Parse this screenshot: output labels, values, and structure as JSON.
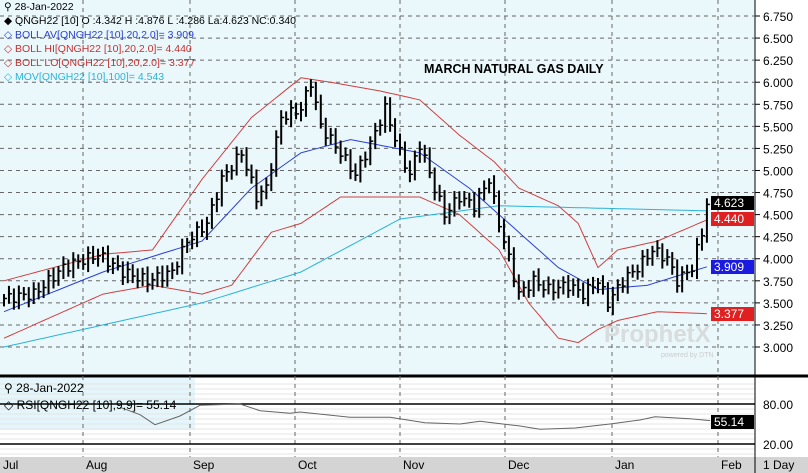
{
  "header": {
    "date": "28-Jan-2022",
    "quote": "QNGH22 [10] O :4.342 H :4.876 L :4.286 La:4.623 NC:0.340",
    "boll_av": "BOLL AV[QNGH22 [10],20,2.0]= 3.909",
    "boll_hi": "BOLL HI[QNGH22 [10],20,2.0]= 4.440",
    "boll_lo": "BOLL LO[QNGH22 [10],20,2.0]= 3.377",
    "mov": "MOV[QNGH22 [10],100]= 4.543"
  },
  "rsi_header": {
    "date": "28-Jan-2022",
    "label": "RSI[QNGH22 [10],9,9]= 55.14"
  },
  "tags": {
    "last": "4.623",
    "hi": "4.440",
    "av": "3.909",
    "lo": "3.377",
    "rsi": "55.14"
  },
  "timeframe": "1 Day",
  "watermark": "ProphetX powered by DTN",
  "colors": {
    "bars": "#000000",
    "boll_av": "#2a3fd6",
    "boll_band": "#d04040",
    "mov": "#2bb3d6",
    "rsi": "#666666"
  },
  "chart_data": {
    "type": "line",
    "title": "MARCH NATURAL GAS DAILY",
    "yticks": [
      "6.750",
      "6.500",
      "6.250",
      "6.000",
      "5.750",
      "5.500",
      "5.250",
      "5.000",
      "4.750",
      "4.500",
      "4.250",
      "4.000",
      "3.750",
      "3.500",
      "3.250",
      "3.000"
    ],
    "ylim": [
      2.75,
      6.9
    ],
    "months": [
      "Jul",
      "Aug",
      "Sep",
      "Oct",
      "Nov",
      "Dec",
      "Jan",
      "Feb"
    ],
    "price_keypoints": [
      [
        0,
        3.55
      ],
      [
        6,
        3.6
      ],
      [
        12,
        3.9
      ],
      [
        19,
        4.05
      ],
      [
        24,
        3.85
      ],
      [
        29,
        3.75
      ],
      [
        34,
        3.85
      ],
      [
        37,
        4.2
      ],
      [
        41,
        4.4
      ],
      [
        44,
        4.9
      ],
      [
        48,
        5.2
      ],
      [
        51,
        4.7
      ],
      [
        53,
        4.8
      ],
      [
        56,
        5.6
      ],
      [
        60,
        5.7
      ],
      [
        62,
        6.0
      ],
      [
        64,
        5.5
      ],
      [
        68,
        5.2
      ],
      [
        71,
        4.95
      ],
      [
        74,
        5.3
      ],
      [
        77,
        5.7
      ],
      [
        80,
        5.2
      ],
      [
        82,
        4.95
      ],
      [
        84,
        5.3
      ],
      [
        87,
        4.8
      ],
      [
        89,
        4.5
      ],
      [
        92,
        4.7
      ],
      [
        95,
        4.6
      ],
      [
        98,
        4.9
      ],
      [
        100,
        4.4
      ],
      [
        102,
        4.0
      ],
      [
        104,
        3.6
      ],
      [
        107,
        3.75
      ],
      [
        110,
        3.65
      ],
      [
        114,
        3.7
      ],
      [
        117,
        3.6
      ],
      [
        120,
        3.75
      ],
      [
        122,
        3.5
      ],
      [
        125,
        3.75
      ],
      [
        128,
        3.9
      ],
      [
        131,
        4.1
      ],
      [
        134,
        4.0
      ],
      [
        136,
        3.75
      ],
      [
        139,
        3.9
      ],
      [
        141,
        4.3
      ],
      [
        142,
        4.623
      ]
    ],
    "mov_100": [
      [
        0,
        3.0
      ],
      [
        40,
        3.5
      ],
      [
        60,
        3.85
      ],
      [
        80,
        4.45
      ],
      [
        100,
        4.6
      ],
      [
        142,
        4.543
      ]
    ],
    "boll_av": [
      [
        0,
        3.4
      ],
      [
        20,
        3.85
      ],
      [
        40,
        4.2
      ],
      [
        50,
        4.8
      ],
      [
        60,
        5.2
      ],
      [
        70,
        5.35
      ],
      [
        84,
        5.2
      ],
      [
        94,
        4.8
      ],
      [
        104,
        4.3
      ],
      [
        112,
        3.9
      ],
      [
        120,
        3.65
      ],
      [
        130,
        3.7
      ],
      [
        142,
        3.909
      ]
    ],
    "boll_hi": [
      [
        0,
        3.75
      ],
      [
        20,
        4.05
      ],
      [
        30,
        4.1
      ],
      [
        40,
        4.9
      ],
      [
        50,
        5.6
      ],
      [
        60,
        6.05
      ],
      [
        66,
        6.0
      ],
      [
        76,
        5.9
      ],
      [
        84,
        5.8
      ],
      [
        92,
        5.4
      ],
      [
        99,
        5.1
      ],
      [
        104,
        4.8
      ],
      [
        112,
        4.6
      ],
      [
        116,
        4.4
      ],
      [
        120,
        3.9
      ],
      [
        124,
        4.1
      ],
      [
        132,
        4.2
      ],
      [
        142,
        4.44
      ]
    ],
    "boll_lo": [
      [
        0,
        3.1
      ],
      [
        20,
        3.6
      ],
      [
        30,
        3.7
      ],
      [
        40,
        3.6
      ],
      [
        46,
        3.7
      ],
      [
        54,
        4.3
      ],
      [
        60,
        4.4
      ],
      [
        68,
        4.7
      ],
      [
        84,
        4.7
      ],
      [
        92,
        4.5
      ],
      [
        100,
        4.1
      ],
      [
        106,
        3.5
      ],
      [
        112,
        3.1
      ],
      [
        116,
        3.05
      ],
      [
        120,
        3.2
      ],
      [
        124,
        3.3
      ],
      [
        132,
        3.4
      ],
      [
        142,
        3.377
      ]
    ],
    "rsi": {
      "yticks": [
        "80.00",
        "20.00"
      ],
      "values": [
        [
          48,
          75
        ],
        [
          56,
          64
        ],
        [
          62,
          49
        ],
        [
          72,
          62
        ],
        [
          80,
          78
        ],
        [
          96,
          80
        ],
        [
          104,
          70
        ],
        [
          116,
          66
        ],
        [
          120,
          68
        ],
        [
          140,
          60
        ],
        [
          156,
          60
        ],
        [
          170,
          52
        ],
        [
          184,
          50
        ],
        [
          192,
          54
        ],
        [
          208,
          47
        ],
        [
          216,
          42
        ],
        [
          230,
          44
        ],
        [
          244,
          50
        ],
        [
          256,
          56
        ],
        [
          262,
          61
        ],
        [
          276,
          58
        ],
        [
          284,
          55.14
        ]
      ]
    }
  }
}
